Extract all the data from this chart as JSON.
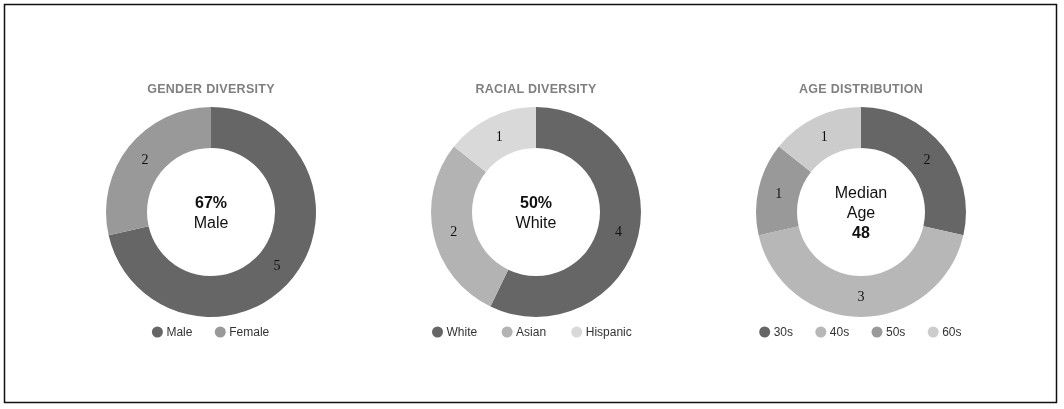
{
  "chart_data": [
    {
      "type": "donut",
      "title": "GENDER DIVERSITY",
      "categories": [
        "Male",
        "Female"
      ],
      "values": [
        5,
        2
      ],
      "colors": [
        "#666666",
        "#999999"
      ],
      "data_labels": true,
      "legend": "bottom",
      "annotations": [
        "67%",
        "Male"
      ]
    },
    {
      "type": "donut",
      "title": "RACIAL DIVERSITY",
      "categories": [
        "White",
        "Asian",
        "Hispanic"
      ],
      "values": [
        4,
        2,
        1
      ],
      "colors": [
        "#666666",
        "#b3b3b3",
        "#d9d9d9"
      ],
      "data_labels": true,
      "legend": "bottom",
      "annotations": [
        "50%",
        "White"
      ]
    },
    {
      "type": "donut",
      "title": "AGE DISTRIBUTION",
      "categories": [
        "30s",
        "40s",
        "50s",
        "60s"
      ],
      "values": [
        2,
        3,
        1,
        1
      ],
      "colors": [
        "#666666",
        "#b7b7b7",
        "#999999",
        "#cccccc"
      ],
      "data_labels": true,
      "legend": "bottom",
      "annotations": [
        "Median Age",
        "48"
      ]
    }
  ]
}
